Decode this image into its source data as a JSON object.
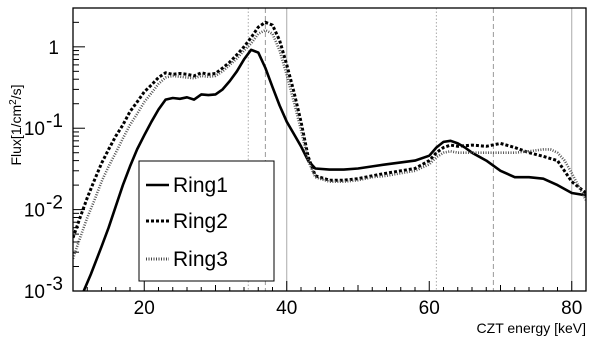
{
  "chart_data": {
    "type": "line",
    "xlabel": "CZT energy [keV]",
    "ylabel_parts": [
      "Flux[1/cm",
      "2",
      "/s]"
    ],
    "xlim": [
      10,
      82
    ],
    "ylim": [
      0.001,
      3
    ],
    "yscale": "log",
    "x_ticks": [
      20,
      40,
      60,
      80
    ],
    "x_tick_labels": [
      "20",
      "40",
      "60",
      "80"
    ],
    "y_ticks": [
      0.001,
      0.01,
      0.1,
      1
    ],
    "y_tick_labels": [
      {
        "base": "10",
        "exp": "-3"
      },
      {
        "base": "10",
        "exp": "-2"
      },
      {
        "base": "10",
        "exp": "-1"
      },
      {
        "base": "1",
        "exp": ""
      }
    ],
    "grid": false,
    "legend_placement": "lower-left",
    "reference_lines": [
      {
        "x": 34.6,
        "style": "dotted"
      },
      {
        "x": 37.0,
        "style": "dashed"
      },
      {
        "x": 40.0,
        "style": "solid"
      },
      {
        "x": 61.0,
        "style": "dotted"
      },
      {
        "x": 69.0,
        "style": "dashed"
      },
      {
        "x": 80.0,
        "style": "solid"
      }
    ],
    "series": [
      {
        "name": "Ring1",
        "style": "solid",
        "x": [
          11.5,
          12.5,
          14,
          15,
          16,
          17,
          18,
          19,
          20,
          21,
          22,
          23,
          24,
          25,
          26,
          27,
          28,
          29,
          30,
          31,
          32,
          33,
          34,
          35,
          36,
          37,
          38,
          39,
          40,
          41,
          42,
          43,
          44,
          46,
          48,
          50,
          52,
          54,
          56,
          58,
          60,
          61,
          62,
          63,
          64,
          65,
          66,
          68,
          70,
          72,
          74,
          76,
          78,
          80,
          82
        ],
        "y": [
          0.001,
          0.0016,
          0.0035,
          0.006,
          0.011,
          0.02,
          0.034,
          0.055,
          0.082,
          0.12,
          0.17,
          0.225,
          0.235,
          0.23,
          0.24,
          0.225,
          0.26,
          0.255,
          0.26,
          0.3,
          0.38,
          0.5,
          0.7,
          0.92,
          0.85,
          0.55,
          0.32,
          0.19,
          0.12,
          0.085,
          0.06,
          0.04,
          0.032,
          0.031,
          0.031,
          0.032,
          0.034,
          0.036,
          0.038,
          0.04,
          0.046,
          0.058,
          0.068,
          0.07,
          0.065,
          0.058,
          0.05,
          0.04,
          0.03,
          0.025,
          0.025,
          0.024,
          0.02,
          0.016,
          0.015
        ]
      },
      {
        "name": "Ring2",
        "style": "dashed",
        "x": [
          10,
          11,
          12,
          13,
          14,
          15,
          16,
          17,
          18,
          19,
          20,
          21,
          22,
          23,
          24,
          25,
          26,
          27,
          28,
          29,
          30,
          31,
          32,
          33,
          34,
          35,
          36,
          37,
          38,
          39,
          40,
          41,
          42,
          43,
          44,
          46,
          48,
          50,
          52,
          54,
          56,
          58,
          60,
          61,
          62,
          63,
          64,
          66,
          68,
          70,
          72,
          74,
          76,
          78,
          80,
          82
        ],
        "y": [
          0.0045,
          0.008,
          0.014,
          0.023,
          0.037,
          0.055,
          0.08,
          0.11,
          0.16,
          0.21,
          0.28,
          0.34,
          0.42,
          0.48,
          0.46,
          0.47,
          0.46,
          0.44,
          0.48,
          0.46,
          0.47,
          0.55,
          0.65,
          0.8,
          1.0,
          1.3,
          1.75,
          2.0,
          1.85,
          1.2,
          0.6,
          0.28,
          0.12,
          0.045,
          0.026,
          0.023,
          0.023,
          0.024,
          0.026,
          0.028,
          0.03,
          0.032,
          0.04,
          0.05,
          0.058,
          0.062,
          0.06,
          0.062,
          0.06,
          0.065,
          0.058,
          0.05,
          0.045,
          0.04,
          0.022,
          0.016
        ]
      },
      {
        "name": "Ring3",
        "style": "dotted",
        "x": [
          10,
          11,
          12,
          13,
          14,
          15,
          16,
          17,
          18,
          19,
          20,
          21,
          22,
          23,
          24,
          25,
          26,
          27,
          28,
          29,
          30,
          31,
          32,
          33,
          34,
          35,
          36,
          37,
          38,
          39,
          40,
          41,
          42,
          43,
          44,
          46,
          48,
          50,
          52,
          54,
          56,
          58,
          60,
          61,
          62,
          63,
          64,
          66,
          68,
          70,
          72,
          74,
          76,
          77,
          78,
          79,
          80,
          82
        ],
        "y": [
          0.0025,
          0.0045,
          0.008,
          0.013,
          0.022,
          0.034,
          0.05,
          0.075,
          0.11,
          0.15,
          0.21,
          0.27,
          0.35,
          0.42,
          0.44,
          0.43,
          0.42,
          0.41,
          0.44,
          0.43,
          0.44,
          0.5,
          0.6,
          0.72,
          0.9,
          1.1,
          1.45,
          1.6,
          1.45,
          0.9,
          0.45,
          0.21,
          0.095,
          0.04,
          0.025,
          0.022,
          0.022,
          0.023,
          0.025,
          0.026,
          0.028,
          0.03,
          0.036,
          0.044,
          0.05,
          0.052,
          0.05,
          0.05,
          0.05,
          0.05,
          0.05,
          0.052,
          0.055,
          0.055,
          0.05,
          0.04,
          0.028,
          0.013
        ]
      }
    ]
  }
}
